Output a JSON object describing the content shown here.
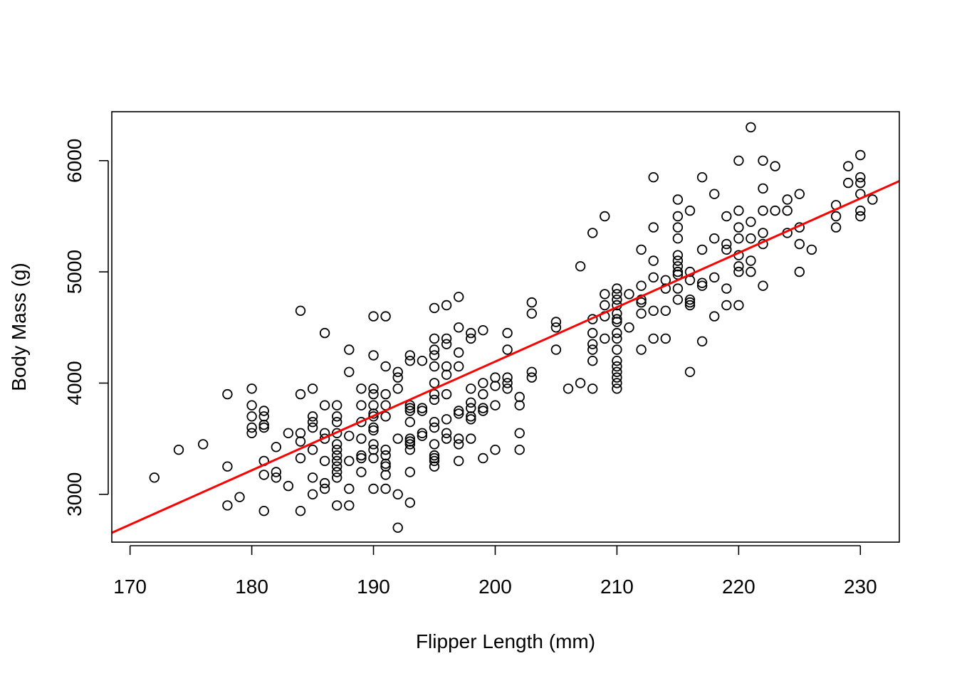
{
  "chart_data": {
    "type": "scatter",
    "title": "",
    "xlabel": "Flipper Length (mm)",
    "ylabel": "Body Mass (g)",
    "xlim": [
      168.5,
      233.2
    ],
    "ylim": [
      2570,
      6440
    ],
    "x_ticks": [
      170,
      180,
      190,
      200,
      210,
      220,
      230
    ],
    "y_ticks": [
      3000,
      4000,
      5000,
      6000
    ],
    "x_tick_labels": [
      "170",
      "180",
      "190",
      "200",
      "210",
      "220",
      "230"
    ],
    "y_tick_labels": [
      "3000",
      "4000",
      "5000",
      "6000"
    ],
    "grid": false,
    "legend": "none",
    "point_color": "#000000",
    "fit_line": {
      "color": "#ff0000",
      "x": [
        168.5,
        233.2
      ],
      "y": [
        2654,
        5816
      ]
    },
    "points": [
      [
        172,
        3150
      ],
      [
        174,
        3400
      ],
      [
        176,
        3450
      ],
      [
        178,
        3900
      ],
      [
        178,
        3250
      ],
      [
        178,
        2900
      ],
      [
        179,
        2975
      ],
      [
        180,
        3950
      ],
      [
        180,
        3800
      ],
      [
        180,
        3700
      ],
      [
        180,
        3600
      ],
      [
        180,
        3550
      ],
      [
        181,
        3750
      ],
      [
        181,
        3700
      ],
      [
        181,
        3625
      ],
      [
        181,
        3600
      ],
      [
        181,
        3300
      ],
      [
        181,
        3175
      ],
      [
        181,
        2850
      ],
      [
        182,
        3425
      ],
      [
        182,
        3200
      ],
      [
        182,
        3150
      ],
      [
        183,
        3550
      ],
      [
        183,
        3075
      ],
      [
        184,
        4650
      ],
      [
        184,
        3900
      ],
      [
        184,
        3550
      ],
      [
        184,
        3475
      ],
      [
        184,
        3325
      ],
      [
        184,
        2850
      ],
      [
        185,
        3950
      ],
      [
        185,
        3700
      ],
      [
        185,
        3650
      ],
      [
        185,
        3600
      ],
      [
        185,
        3400
      ],
      [
        185,
        3150
      ],
      [
        185,
        3000
      ],
      [
        186,
        4450
      ],
      [
        186,
        3800
      ],
      [
        186,
        3550
      ],
      [
        186,
        3500
      ],
      [
        186,
        3300
      ],
      [
        186,
        3100
      ],
      [
        186,
        3050
      ],
      [
        187,
        3800
      ],
      [
        187,
        3700
      ],
      [
        187,
        3650
      ],
      [
        187,
        3550
      ],
      [
        187,
        3450
      ],
      [
        187,
        3400
      ],
      [
        187,
        3350
      ],
      [
        187,
        3300
      ],
      [
        187,
        3250
      ],
      [
        187,
        3200
      ],
      [
        187,
        3150
      ],
      [
        187,
        2900
      ],
      [
        188,
        4300
      ],
      [
        188,
        4100
      ],
      [
        188,
        3525
      ],
      [
        188,
        3300
      ],
      [
        188,
        3050
      ],
      [
        188,
        2900
      ],
      [
        189,
        3950
      ],
      [
        189,
        3800
      ],
      [
        189,
        3650
      ],
      [
        189,
        3500
      ],
      [
        189,
        3350
      ],
      [
        189,
        3325
      ],
      [
        189,
        3200
      ],
      [
        190,
        4600
      ],
      [
        190,
        4250
      ],
      [
        190,
        3950
      ],
      [
        190,
        3900
      ],
      [
        190,
        3800
      ],
      [
        190,
        3725
      ],
      [
        190,
        3700
      ],
      [
        190,
        3600
      ],
      [
        190,
        3575
      ],
      [
        190,
        3450
      ],
      [
        190,
        3400
      ],
      [
        190,
        3325
      ],
      [
        190,
        3050
      ],
      [
        191,
        4600
      ],
      [
        191,
        4150
      ],
      [
        191,
        3900
      ],
      [
        191,
        3800
      ],
      [
        191,
        3700
      ],
      [
        191,
        3400
      ],
      [
        191,
        3350
      ],
      [
        191,
        3275
      ],
      [
        191,
        3250
      ],
      [
        191,
        3175
      ],
      [
        191,
        3050
      ],
      [
        192,
        4100
      ],
      [
        192,
        4050
      ],
      [
        192,
        3950
      ],
      [
        192,
        3500
      ],
      [
        192,
        3000
      ],
      [
        192,
        2700
      ],
      [
        193,
        4250
      ],
      [
        193,
        4200
      ],
      [
        193,
        3800
      ],
      [
        193,
        3775
      ],
      [
        193,
        3750
      ],
      [
        193,
        3650
      ],
      [
        193,
        3500
      ],
      [
        193,
        3475
      ],
      [
        193,
        3450
      ],
      [
        193,
        3400
      ],
      [
        193,
        3200
      ],
      [
        193,
        2925
      ],
      [
        194,
        4200
      ],
      [
        194,
        3775
      ],
      [
        194,
        3750
      ],
      [
        194,
        3550
      ],
      [
        194,
        3525
      ],
      [
        195,
        4675
      ],
      [
        195,
        4400
      ],
      [
        195,
        4300
      ],
      [
        195,
        4250
      ],
      [
        195,
        4150
      ],
      [
        195,
        4000
      ],
      [
        195,
        3900
      ],
      [
        195,
        3850
      ],
      [
        195,
        3650
      ],
      [
        195,
        3600
      ],
      [
        195,
        3450
      ],
      [
        195,
        3350
      ],
      [
        195,
        3325
      ],
      [
        195,
        3300
      ],
      [
        195,
        3250
      ],
      [
        196,
        4700
      ],
      [
        196,
        4400
      ],
      [
        196,
        4350
      ],
      [
        196,
        4150
      ],
      [
        196,
        4075
      ],
      [
        196,
        3900
      ],
      [
        196,
        3675
      ],
      [
        196,
        3550
      ],
      [
        196,
        3500
      ],
      [
        197,
        4775
      ],
      [
        197,
        4500
      ],
      [
        197,
        4275
      ],
      [
        197,
        4150
      ],
      [
        197,
        3750
      ],
      [
        197,
        3725
      ],
      [
        197,
        3500
      ],
      [
        197,
        3450
      ],
      [
        197,
        3300
      ],
      [
        198,
        4450
      ],
      [
        198,
        4400
      ],
      [
        198,
        3950
      ],
      [
        198,
        3825
      ],
      [
        198,
        3775
      ],
      [
        198,
        3700
      ],
      [
        198,
        3675
      ],
      [
        198,
        3500
      ],
      [
        199,
        4475
      ],
      [
        199,
        4000
      ],
      [
        199,
        3900
      ],
      [
        199,
        3775
      ],
      [
        199,
        3750
      ],
      [
        199,
        3325
      ],
      [
        200,
        4050
      ],
      [
        200,
        3975
      ],
      [
        200,
        3800
      ],
      [
        200,
        3400
      ],
      [
        201,
        4450
      ],
      [
        201,
        4300
      ],
      [
        201,
        4050
      ],
      [
        201,
        4000
      ],
      [
        201,
        3950
      ],
      [
        202,
        3875
      ],
      [
        202,
        3800
      ],
      [
        202,
        3550
      ],
      [
        202,
        3400
      ],
      [
        203,
        4725
      ],
      [
        203,
        4625
      ],
      [
        203,
        4100
      ],
      [
        203,
        4050
      ],
      [
        205,
        4550
      ],
      [
        205,
        4500
      ],
      [
        205,
        4300
      ],
      [
        206,
        3950
      ],
      [
        207,
        5050
      ],
      [
        207,
        4000
      ],
      [
        208,
        5350
      ],
      [
        208,
        4575
      ],
      [
        208,
        4450
      ],
      [
        208,
        4350
      ],
      [
        208,
        4300
      ],
      [
        208,
        4200
      ],
      [
        208,
        3950
      ],
      [
        209,
        5500
      ],
      [
        209,
        4800
      ],
      [
        209,
        4700
      ],
      [
        209,
        4600
      ],
      [
        209,
        4400
      ],
      [
        210,
        4850
      ],
      [
        210,
        4800
      ],
      [
        210,
        4750
      ],
      [
        210,
        4700
      ],
      [
        210,
        4625
      ],
      [
        210,
        4575
      ],
      [
        210,
        4550
      ],
      [
        210,
        4450
      ],
      [
        210,
        4400
      ],
      [
        210,
        4300
      ],
      [
        210,
        4200
      ],
      [
        210,
        4150
      ],
      [
        210,
        4100
      ],
      [
        210,
        4050
      ],
      [
        210,
        4000
      ],
      [
        210,
        3950
      ],
      [
        211,
        4800
      ],
      [
        211,
        4500
      ],
      [
        212,
        5200
      ],
      [
        212,
        4875
      ],
      [
        212,
        4750
      ],
      [
        212,
        4725
      ],
      [
        212,
        4625
      ],
      [
        212,
        4300
      ],
      [
        213,
        5850
      ],
      [
        213,
        5400
      ],
      [
        213,
        5100
      ],
      [
        213,
        4950
      ],
      [
        213,
        4650
      ],
      [
        213,
        4400
      ],
      [
        214,
        4925
      ],
      [
        214,
        4850
      ],
      [
        214,
        4650
      ],
      [
        214,
        4400
      ],
      [
        215,
        5650
      ],
      [
        215,
        5500
      ],
      [
        215,
        5400
      ],
      [
        215,
        5300
      ],
      [
        215,
        5150
      ],
      [
        215,
        5100
      ],
      [
        215,
        5050
      ],
      [
        215,
        5000
      ],
      [
        215,
        4975
      ],
      [
        215,
        4850
      ],
      [
        215,
        4750
      ],
      [
        216,
        5550
      ],
      [
        216,
        5000
      ],
      [
        216,
        4925
      ],
      [
        216,
        4750
      ],
      [
        216,
        4725
      ],
      [
        216,
        4700
      ],
      [
        216,
        4100
      ],
      [
        217,
        5850
      ],
      [
        217,
        5200
      ],
      [
        217,
        4900
      ],
      [
        217,
        4875
      ],
      [
        217,
        4375
      ],
      [
        218,
        5700
      ],
      [
        218,
        5300
      ],
      [
        218,
        4950
      ],
      [
        218,
        4600
      ],
      [
        219,
        5500
      ],
      [
        219,
        5250
      ],
      [
        219,
        5200
      ],
      [
        219,
        4850
      ],
      [
        219,
        4700
      ],
      [
        220,
        6000
      ],
      [
        220,
        5550
      ],
      [
        220,
        5400
      ],
      [
        220,
        5300
      ],
      [
        220,
        5150
      ],
      [
        220,
        5050
      ],
      [
        220,
        5000
      ],
      [
        220,
        4700
      ],
      [
        221,
        6300
      ],
      [
        221,
        5450
      ],
      [
        221,
        5300
      ],
      [
        221,
        5100
      ],
      [
        221,
        5000
      ],
      [
        222,
        6000
      ],
      [
        222,
        5750
      ],
      [
        222,
        5550
      ],
      [
        222,
        5350
      ],
      [
        222,
        5250
      ],
      [
        222,
        4875
      ],
      [
        223,
        5950
      ],
      [
        223,
        5550
      ],
      [
        224,
        5650
      ],
      [
        224,
        5550
      ],
      [
        224,
        5350
      ],
      [
        225,
        5700
      ],
      [
        225,
        5400
      ],
      [
        225,
        5250
      ],
      [
        225,
        5000
      ],
      [
        226,
        5200
      ],
      [
        228,
        5600
      ],
      [
        228,
        5500
      ],
      [
        228,
        5400
      ],
      [
        229,
        5950
      ],
      [
        229,
        5800
      ],
      [
        230,
        6050
      ],
      [
        230,
        5850
      ],
      [
        230,
        5800
      ],
      [
        230,
        5700
      ],
      [
        230,
        5550
      ],
      [
        230,
        5500
      ],
      [
        231,
        5650
      ]
    ]
  }
}
